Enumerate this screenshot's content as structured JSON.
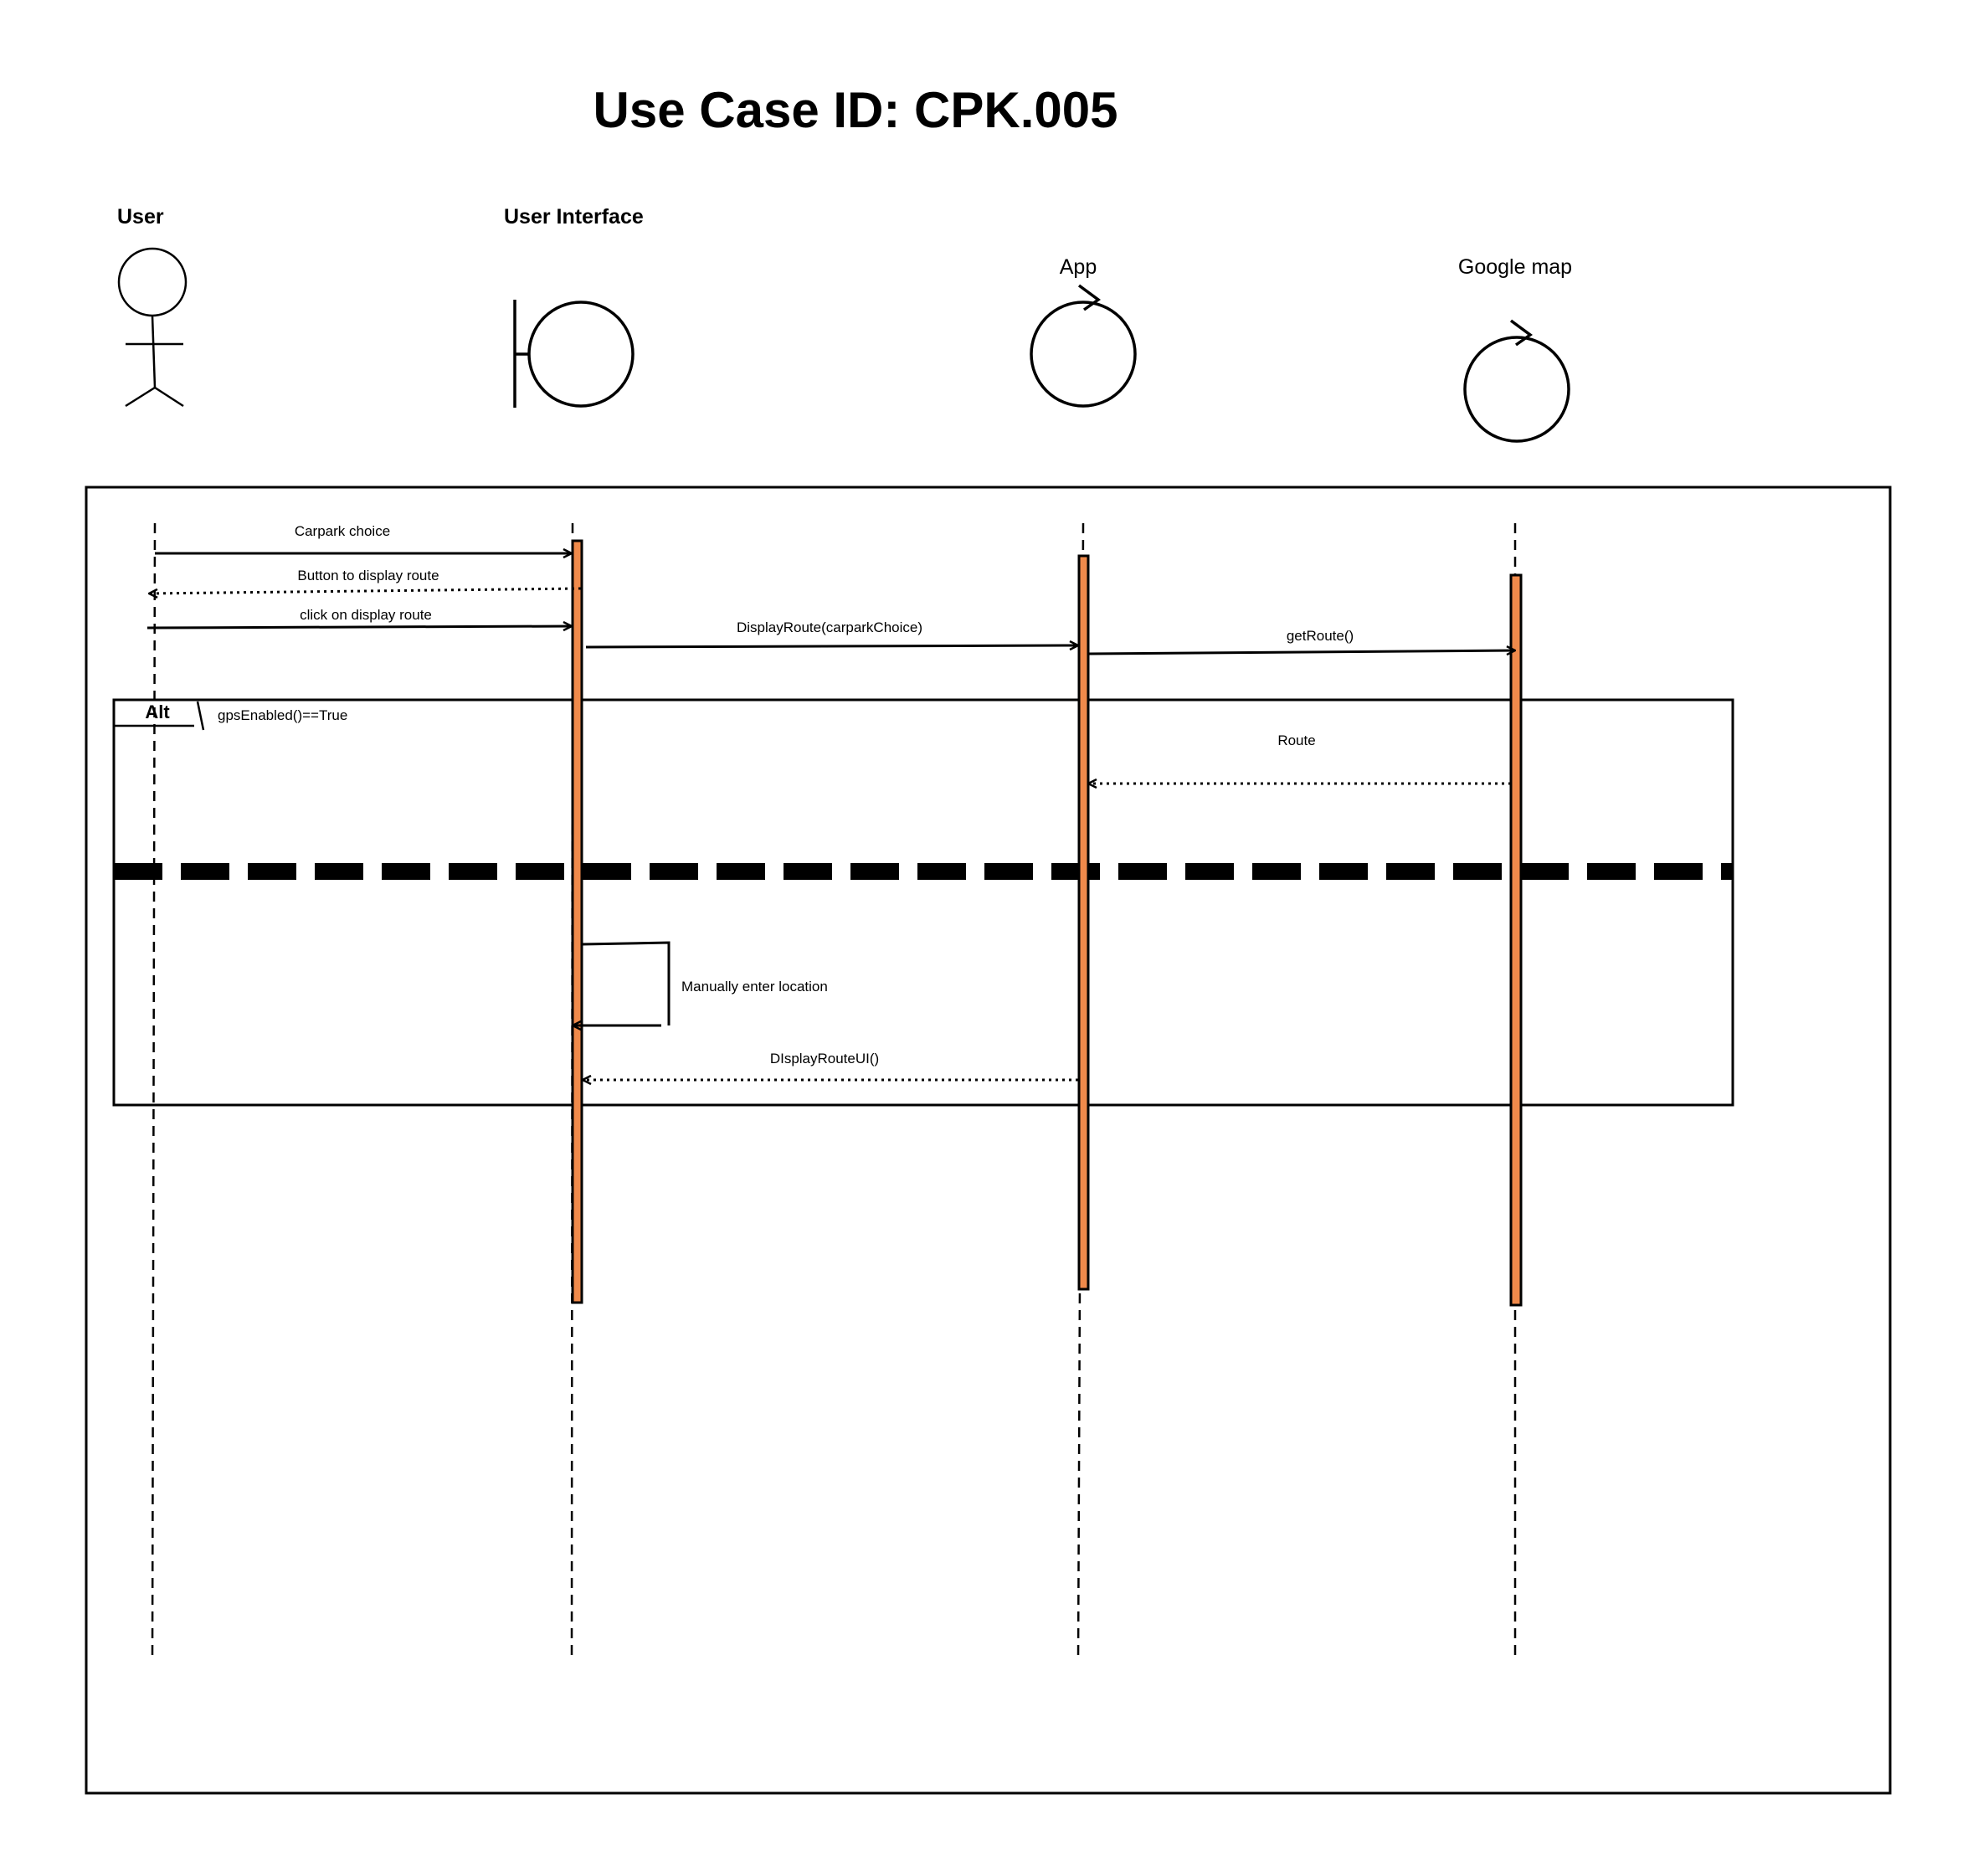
{
  "title": "Use Case ID: CPK.005",
  "participants": {
    "user": {
      "label": "User",
      "icon": "actor-stick-figure-icon"
    },
    "ui": {
      "label": "User Interface",
      "icon": "boundary-icon"
    },
    "app": {
      "label": "App",
      "icon": "control-icon"
    },
    "map": {
      "label": "Google map",
      "icon": "control-icon"
    }
  },
  "messages": {
    "m1": "Carpark choice",
    "m2": "Button to display route",
    "m3": "click on display route",
    "m4": "DisplayRoute(carparkChoice)",
    "m5": "getRoute()",
    "m6": "Route",
    "m7": "Manually enter location",
    "m8": "DIsplayRouteUI()"
  },
  "alt_fragment": {
    "operator": "Alt",
    "guard": "gpsEnabled()==True"
  },
  "colors": {
    "activation": "#f08a4b",
    "stroke": "#000000",
    "background": "#ffffff"
  }
}
